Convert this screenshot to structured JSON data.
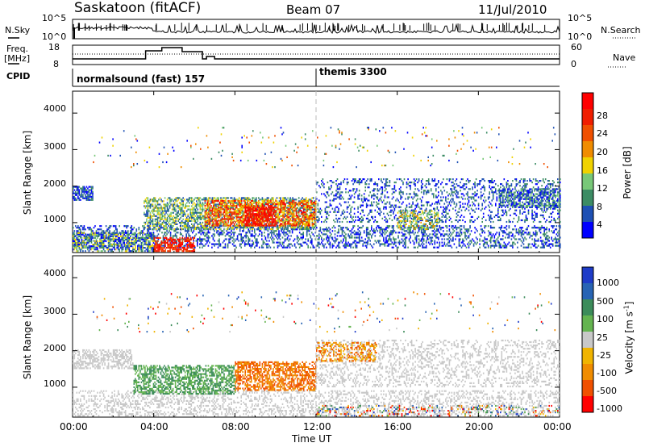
{
  "header": {
    "station": "Saskatoon (fitACF)",
    "beam": "Beam 07",
    "date": "11/Jul/2010"
  },
  "side_labels": {
    "nsky": "N.Sky",
    "nsearch": "N.Search",
    "freq_line1": "Freq.",
    "freq_line2": "[MHz]",
    "nave": "Nave",
    "cpid": "CPID"
  },
  "noise_panel": {
    "left_ticks": [
      "10^5",
      "10^0"
    ],
    "right_ticks": [
      "10^5",
      "10^0"
    ]
  },
  "freq_panel": {
    "left_ticks": [
      "18",
      "8"
    ],
    "right_ticks": [
      "60",
      "0"
    ]
  },
  "cpid_panel": {
    "programs": [
      "normalsound (fast) 157",
      "themis 3300"
    ]
  },
  "colors": {
    "power_scale": [
      "#0000ff",
      "#1e50b4",
      "#3c8c64",
      "#78c878",
      "#f0d200",
      "#f08c00",
      "#f05000",
      "#f01e00",
      "#ff0000"
    ],
    "velocity_scale": [
      "#1e3cc8",
      "#2864b4",
      "#3c8c5a",
      "#64b450",
      "#c8c8c8",
      "#f0b400",
      "#f08c00",
      "#f05000",
      "#ff0000"
    ]
  },
  "chart_data": [
    {
      "type": "heatmap",
      "title": "",
      "ylabel": "Slant Range [km]",
      "yticks": [
        "1000",
        "2000",
        "3000",
        "4000"
      ],
      "ylim": [
        180,
        4600
      ],
      "xlim": [
        "00:00",
        "24:00"
      ],
      "colorbar": {
        "label": "Power [dB]",
        "ticks": [
          "4",
          "8",
          "12",
          "16",
          "20",
          "24",
          "28"
        ],
        "range": [
          0,
          30
        ]
      }
    },
    {
      "type": "heatmap",
      "title": "",
      "xlabel": "Time UT",
      "xticks": [
        "00:00",
        "04:00",
        "08:00",
        "12:00",
        "16:00",
        "20:00",
        "00:00"
      ],
      "ylabel": "Slant Range [km]",
      "yticks": [
        "1000",
        "2000",
        "3000",
        "4000"
      ],
      "ylim": [
        180,
        4600
      ],
      "xlim": [
        "00:00",
        "24:00"
      ],
      "colorbar": {
        "label": "Velocity [m s-1]",
        "ticks": [
          "1000",
          "500",
          "100",
          "25",
          "-25",
          "-100",
          "-500",
          "-1000"
        ],
        "range": [
          -1000,
          1000
        ]
      }
    }
  ]
}
